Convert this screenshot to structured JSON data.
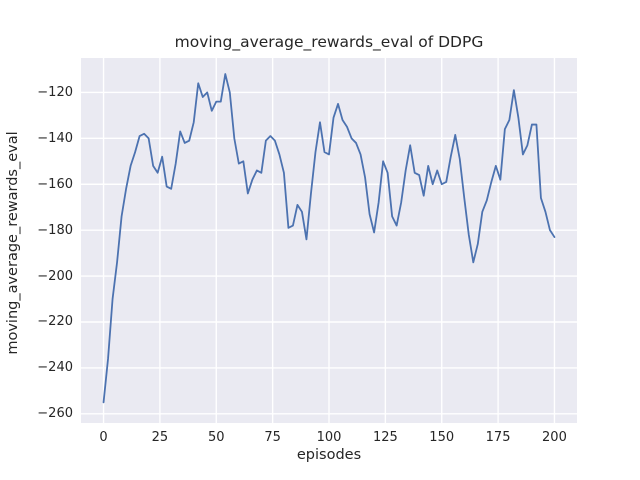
{
  "chart_data": {
    "type": "line",
    "title": "moving_average_rewards_eval of DDPG",
    "xlabel": "episodes",
    "ylabel": "moving_average_rewards_eval",
    "legend": null,
    "grid": true,
    "style": "seaborn-darkgrid",
    "colors": {
      "line": "#4C72B0",
      "panel_background": "#EAEAF2",
      "gridline": "#FFFFFF",
      "text": "#262626",
      "figure_background": "#FFFFFF"
    },
    "xlim": [
      -10,
      210
    ],
    "ylim": [
      -264,
      -105
    ],
    "xticks": [
      0,
      25,
      50,
      75,
      100,
      125,
      150,
      175,
      200
    ],
    "yticks": [
      -120,
      -140,
      -160,
      -180,
      -200,
      -220,
      -240,
      -260
    ],
    "series": [
      {
        "name": "moving_average_rewards_eval",
        "x": [
          0,
          2,
          4,
          6,
          8,
          10,
          12,
          14,
          16,
          18,
          20,
          22,
          24,
          26,
          28,
          30,
          32,
          34,
          36,
          38,
          40,
          42,
          44,
          46,
          48,
          50,
          52,
          54,
          56,
          58,
          60,
          62,
          64,
          66,
          68,
          70,
          72,
          74,
          76,
          78,
          80,
          82,
          84,
          86,
          88,
          90,
          92,
          94,
          96,
          98,
          100,
          102,
          104,
          106,
          108,
          110,
          112,
          114,
          116,
          118,
          120,
          122,
          124,
          126,
          128,
          130,
          132,
          134,
          136,
          138,
          140,
          142,
          144,
          146,
          148,
          150,
          152,
          154,
          156,
          158,
          160,
          162,
          164,
          166,
          168,
          170,
          172,
          174,
          176,
          178,
          180,
          182,
          184,
          186,
          188,
          190,
          192,
          194,
          196,
          198,
          200
        ],
        "y": [
          -255,
          -236,
          -210,
          -194,
          -174,
          -162,
          -152,
          -146,
          -139,
          -138,
          -140,
          -152,
          -155,
          -148,
          -161,
          -162,
          -151,
          -137,
          -142,
          -141,
          -133,
          -116,
          -122,
          -120,
          -128,
          -124,
          -124,
          -112,
          -120,
          -140,
          -151,
          -150,
          -164,
          -158,
          -154,
          -155,
          -141,
          -139,
          -141,
          -147,
          -155,
          -179,
          -178,
          -169,
          -172,
          -184,
          -164,
          -146,
          -133,
          -146,
          -147,
          -131,
          -125,
          -132,
          -135,
          -140,
          -142,
          -147,
          -157,
          -173,
          -181,
          -168,
          -150,
          -155,
          -174,
          -178,
          -168,
          -154,
          -143,
          -155,
          -156,
          -165,
          -152,
          -160,
          -154,
          -160,
          -159,
          -148,
          -138.5,
          -149,
          -166,
          -182,
          -194,
          -186,
          -172,
          -167,
          -159,
          -152,
          -158,
          -136,
          -132,
          -119,
          -131,
          -147,
          -143,
          -134,
          -134,
          -166,
          -172,
          -180,
          -183
        ]
      }
    ]
  }
}
